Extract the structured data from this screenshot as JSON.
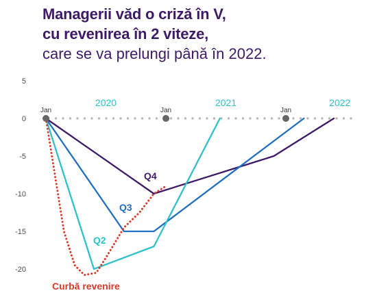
{
  "title": {
    "line1": "Managerii văd o criză în V,",
    "line2": "cu revenirea în 2 viteze,",
    "line3": "care se va prelungi până în 2022."
  },
  "colors": {
    "title": "#3d1a66",
    "Q4": "#3d1a66",
    "Q3": "#1f6fc0",
    "Q2": "#30c0c8",
    "recovery": "#d93a2b",
    "years": "#30c0c8",
    "baseline_dots": "#b8b8b8",
    "jan_markers": "#666666"
  },
  "chart_data": {
    "type": "line",
    "x_unit": "months from Jan 2020",
    "xlim": [
      0,
      26
    ],
    "ylim": [
      -21,
      5
    ],
    "yticks": [
      5,
      0,
      -5,
      -10,
      -15,
      -20
    ],
    "ytick_labels": [
      "5",
      "0",
      "-5",
      "-10",
      "-15",
      "-20"
    ],
    "grid": false,
    "year_labels": [
      {
        "label": "2020",
        "x": 5
      },
      {
        "label": "2021",
        "x": 15
      },
      {
        "label": "2022",
        "x": 24.5
      }
    ],
    "jan_markers": [
      {
        "label": "Jan",
        "x": 0
      },
      {
        "label": "Jan",
        "x": 10
      },
      {
        "label": "Jan",
        "x": 20
      }
    ],
    "series": [
      {
        "name": "Q4",
        "key": "Q4",
        "x": [
          0,
          9,
          19,
          24
        ],
        "y": [
          0,
          -10,
          -5,
          0
        ]
      },
      {
        "name": "Q3",
        "key": "Q3",
        "x": [
          0,
          6.5,
          9,
          21.5
        ],
        "y": [
          0,
          -15,
          -15,
          0
        ]
      },
      {
        "name": "Q2",
        "key": "Q2",
        "x": [
          0,
          4,
          9,
          14.5
        ],
        "y": [
          0,
          -20,
          -17,
          0
        ]
      },
      {
        "name": "Curbă revenire",
        "key": "recovery",
        "dotted": true,
        "x": [
          0,
          0.8,
          1.5,
          2.4,
          3.2,
          4.2,
          5.0,
          6.5,
          7.8,
          9.0,
          10.0
        ],
        "y": [
          0,
          -8,
          -15,
          -19.5,
          -20.8,
          -20.5,
          -18.5,
          -14.5,
          -12.5,
          -10,
          -9
        ]
      }
    ]
  }
}
